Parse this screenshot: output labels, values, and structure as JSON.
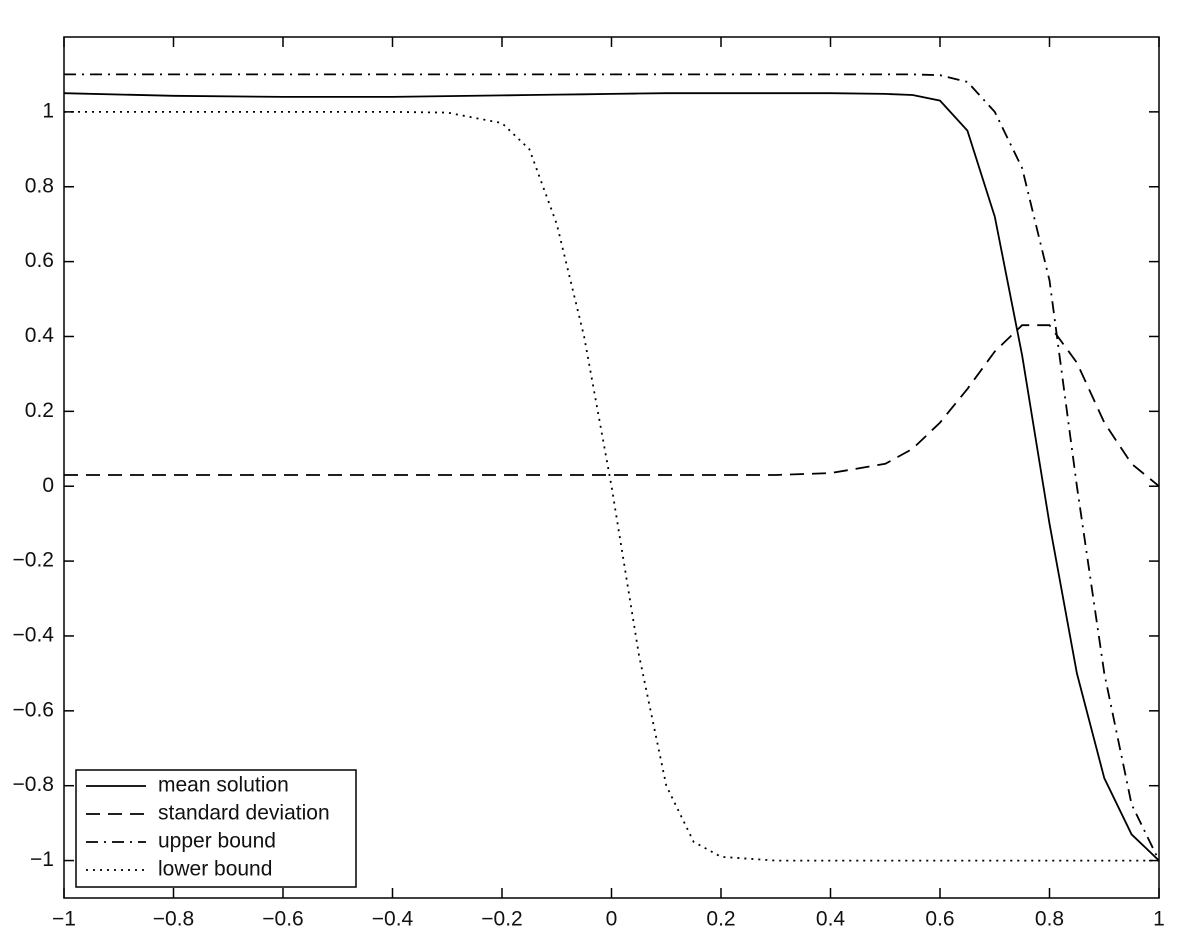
{
  "chart_data": {
    "type": "line",
    "x": [
      -1,
      -0.8,
      -0.6,
      -0.4,
      -0.3,
      -0.2,
      -0.15,
      -0.1,
      -0.05,
      0,
      0.05,
      0.1,
      0.15,
      0.2,
      0.3,
      0.4,
      0.5,
      0.55,
      0.6,
      0.65,
      0.7,
      0.75,
      0.8,
      0.85,
      0.9,
      0.95,
      1
    ],
    "series": [
      {
        "name": "mean solution",
        "color": "#000000",
        "linestyle": "solid",
        "values": [
          1.05,
          1.043,
          1.04,
          1.04,
          1.042,
          1.044,
          1.045,
          1.046,
          1.047,
          1.048,
          1.049,
          1.05,
          1.05,
          1.05,
          1.05,
          1.05,
          1.048,
          1.045,
          1.03,
          0.95,
          0.72,
          0.35,
          -0.1,
          -0.5,
          -0.78,
          -0.93,
          -1
        ]
      },
      {
        "name": "standard deviation",
        "color": "#000000",
        "linestyle": "dashed",
        "values": [
          0.03,
          0.03,
          0.03,
          0.03,
          0.03,
          0.03,
          0.03,
          0.03,
          0.03,
          0.03,
          0.03,
          0.03,
          0.03,
          0.03,
          0.03,
          0.035,
          0.06,
          0.1,
          0.17,
          0.26,
          0.36,
          0.43,
          0.43,
          0.33,
          0.17,
          0.06,
          0
        ]
      },
      {
        "name": "upper bound",
        "color": "#000000",
        "linestyle": "dashdot",
        "values": [
          1.1,
          1.1,
          1.1,
          1.1,
          1.1,
          1.1,
          1.1,
          1.1,
          1.1,
          1.1,
          1.1,
          1.1,
          1.1,
          1.1,
          1.1,
          1.1,
          1.1,
          1.1,
          1.098,
          1.08,
          1.0,
          0.85,
          0.55,
          0.0,
          -0.5,
          -0.85,
          -1
        ]
      },
      {
        "name": "lower bound",
        "color": "#000000",
        "linestyle": "dotted",
        "values": [
          1.0,
          1.0,
          1.0,
          1.0,
          0.998,
          0.97,
          0.9,
          0.7,
          0.4,
          0.0,
          -0.45,
          -0.8,
          -0.95,
          -0.99,
          -1,
          -1,
          -1,
          -1,
          -1,
          -1,
          -1,
          -1,
          -1,
          -1,
          -1,
          -1,
          -1
        ]
      }
    ],
    "xlim": [
      -1,
      1
    ],
    "xticks": [
      {
        "value": -1,
        "label": "−1"
      },
      {
        "value": -0.8,
        "label": "−0.8"
      },
      {
        "value": -0.6,
        "label": "−0.6"
      },
      {
        "value": -0.4,
        "label": "−0.4"
      },
      {
        "value": -0.2,
        "label": "−0.2"
      },
      0,
      0.2,
      0.4,
      0.6,
      0.8,
      1
    ],
    "ylim": [
      -1.1,
      1.2
    ],
    "yticks": [
      {
        "value": -1,
        "label": "−1"
      },
      {
        "value": -0.8,
        "label": "−0.8"
      },
      {
        "value": -0.6,
        "label": "−0.6"
      },
      {
        "value": -0.4,
        "label": "−0.4"
      },
      {
        "value": -0.2,
        "label": "−0.2"
      },
      0,
      0.2,
      0.4,
      0.6,
      0.8,
      1
    ],
    "legend": "lower left"
  }
}
